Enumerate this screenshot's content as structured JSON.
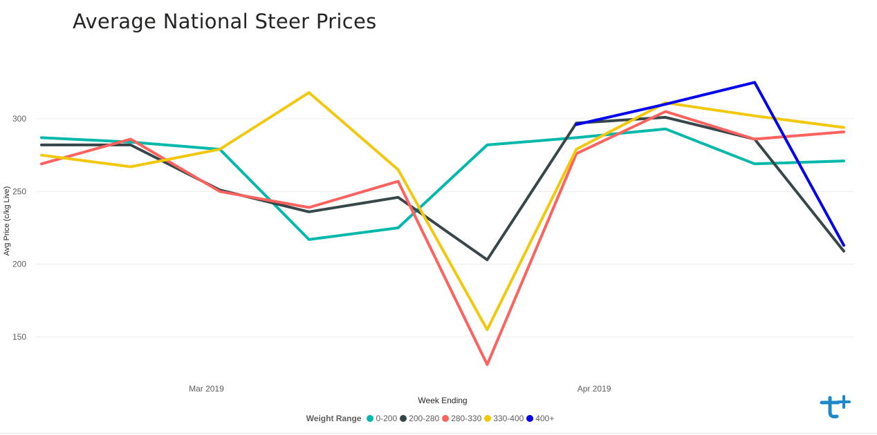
{
  "title": "Average National Steer Prices",
  "chart_data": {
    "type": "line",
    "title": "Average National Steer Prices",
    "xlabel": "Week Ending",
    "ylabel": "Avg Price (c/kg Live)",
    "x_points": 10,
    "x_tick_labels": [
      {
        "label": "Mar 2019",
        "index": 1.85
      },
      {
        "label": "Apr 2019",
        "index": 6.2
      }
    ],
    "y_ticks": [
      150,
      200,
      250,
      300
    ],
    "ylim": [
      120,
      335
    ],
    "grid": true,
    "legend": {
      "title": "Weight Range",
      "placement": "bottom-center"
    },
    "series": [
      {
        "name": "0-200",
        "color": "#01b8aa",
        "values": [
          287,
          284,
          279,
          217,
          225,
          282,
          287,
          293,
          269,
          271
        ]
      },
      {
        "name": "200-280",
        "color": "#374649",
        "values": [
          282,
          282,
          251,
          236,
          246,
          203,
          297,
          301,
          286,
          209
        ]
      },
      {
        "name": "280-330",
        "color": "#fd625e",
        "values": [
          269,
          286,
          250,
          239,
          257,
          131,
          276,
          305,
          286,
          291
        ]
      },
      {
        "name": "330-400",
        "color": "#f2c80f",
        "values": [
          275,
          267,
          279,
          318,
          265,
          155,
          279,
          311,
          302,
          294
        ]
      },
      {
        "name": "400+",
        "color": "#0000ee",
        "values": [
          null,
          null,
          null,
          null,
          null,
          null,
          296,
          310,
          325,
          213
        ]
      }
    ]
  },
  "logo": {
    "icon": "t-plus-logo-icon",
    "color": "#1e88c8"
  }
}
